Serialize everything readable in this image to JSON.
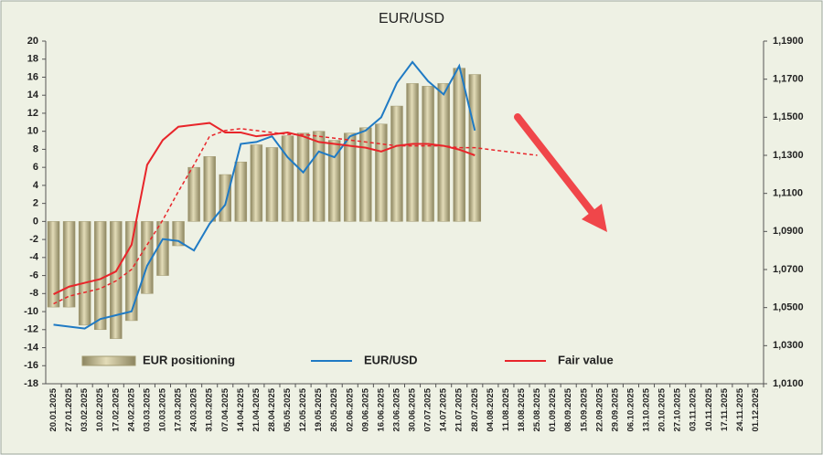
{
  "chart_data": {
    "type": "bar",
    "title": "EUR/USD",
    "categories": [
      "20.01.2025",
      "27.01.2025",
      "03.02.2025",
      "10.02.2025",
      "17.02.2025",
      "24.02.2025",
      "03.03.2025",
      "10.03.2025",
      "17.03.2025",
      "24.03.2025",
      "31.03.2025",
      "07.04.2025",
      "14.04.2025",
      "21.04.2025",
      "28.04.2025",
      "05.05.2025",
      "12.05.2025",
      "19.05.2025",
      "26.05.2025",
      "02.06.2025",
      "09.06.2025",
      "16.06.2025",
      "23.06.2025",
      "30.06.2025",
      "07.07.2025",
      "14.07.2025",
      "21.07.2025",
      "28.07.2025",
      "04.08.2025",
      "11.08.2025",
      "18.08.2025",
      "25.08.2025",
      "01.09.2025",
      "08.09.2025",
      "15.09.2025",
      "22.09.2025",
      "29.09.2025",
      "06.10.2025",
      "13.10.2025",
      "20.10.2025",
      "27.10.2025",
      "03.11.2025",
      "10.11.2025",
      "17.11.2025",
      "24.11.2025",
      "01.12.2025"
    ],
    "series": [
      {
        "name": "EUR positioning",
        "type": "bar",
        "color": "#bdb58a",
        "values": [
          -9.5,
          -9.5,
          -11.5,
          -12,
          -13,
          -11,
          -8,
          -6,
          -2.7,
          6,
          7.2,
          5.2,
          6.6,
          8.5,
          8.2,
          9.5,
          9.8,
          10,
          9,
          9.8,
          10.4,
          10.8,
          12.8,
          15.3,
          15,
          15.3,
          17,
          16.3,
          null,
          null,
          null,
          null,
          null,
          null,
          null,
          null,
          null,
          null,
          null,
          null,
          null,
          null,
          null,
          null,
          null,
          null
        ]
      },
      {
        "name": "EUR/USD",
        "type": "line",
        "axis": "y2",
        "color": "#1f7ac4",
        "values": [
          1.041,
          1.04,
          1.039,
          1.044,
          1.046,
          1.048,
          1.072,
          1.086,
          1.085,
          1.08,
          1.094,
          1.104,
          1.136,
          1.137,
          1.14,
          1.129,
          1.121,
          1.132,
          1.129,
          1.14,
          1.143,
          1.15,
          1.168,
          1.179,
          1.169,
          1.162,
          1.177,
          1.143,
          null,
          null,
          null,
          null,
          null,
          null,
          null,
          null,
          null,
          null,
          null,
          null,
          null,
          null,
          null,
          null,
          null,
          null
        ]
      },
      {
        "name": "Fair value",
        "type": "line",
        "axis": "y2",
        "color": "#e8252a",
        "values": [
          1.057,
          1.061,
          1.063,
          1.065,
          1.069,
          1.083,
          1.125,
          1.138,
          1.145,
          1.146,
          1.147,
          1.142,
          1.142,
          1.14,
          1.141,
          1.142,
          1.14,
          1.137,
          1.136,
          1.135,
          1.134,
          1.132,
          1.135,
          1.136,
          1.136,
          1.135,
          1.133,
          1.13,
          null,
          null,
          null,
          null,
          null,
          null,
          null,
          null,
          null,
          null,
          null,
          null,
          null,
          null,
          null,
          null,
          null,
          null
        ]
      },
      {
        "type": "line",
        "axis": "y2",
        "dashed": true,
        "color": "#e8252a",
        "values": [
          1.052,
          1.056,
          1.058,
          1.06,
          1.064,
          1.07,
          1.083,
          1.096,
          1.111,
          1.125,
          1.14,
          1.143,
          1.144,
          1.143,
          1.142,
          1.141,
          1.141,
          1.14,
          1.139,
          1.138,
          1.137,
          1.136,
          1.135,
          1.135,
          1.135,
          1.135,
          1.134,
          1.134,
          1.133,
          1.132,
          1.131,
          1.13,
          null,
          null,
          null,
          null,
          null,
          null,
          null,
          null,
          null,
          null,
          null,
          null,
          null,
          null
        ]
      }
    ],
    "ylim": [
      -18,
      20
    ],
    "yticks": [
      -18,
      -16,
      -14,
      -12,
      -10,
      -8,
      -6,
      -4,
      -2,
      0,
      2,
      4,
      6,
      8,
      10,
      12,
      14,
      16,
      18,
      20
    ],
    "y2lim": [
      1.01,
      1.19
    ],
    "y2ticks": [
      {
        "value": 1.01,
        "label": "1,0100"
      },
      {
        "value": 1.03,
        "label": "1,0300"
      },
      {
        "value": 1.05,
        "label": "1,0500"
      },
      {
        "value": 1.07,
        "label": "1,0700"
      },
      {
        "value": 1.09,
        "label": "1,0900"
      },
      {
        "value": 1.11,
        "label": "1,1100"
      },
      {
        "value": 1.13,
        "label": "1,1300"
      },
      {
        "value": 1.15,
        "label": "1,1500"
      },
      {
        "value": 1.17,
        "label": "1,1700"
      },
      {
        "value": 1.19,
        "label": "1,1900"
      }
    ],
    "grid": false,
    "legend": "bottom"
  }
}
